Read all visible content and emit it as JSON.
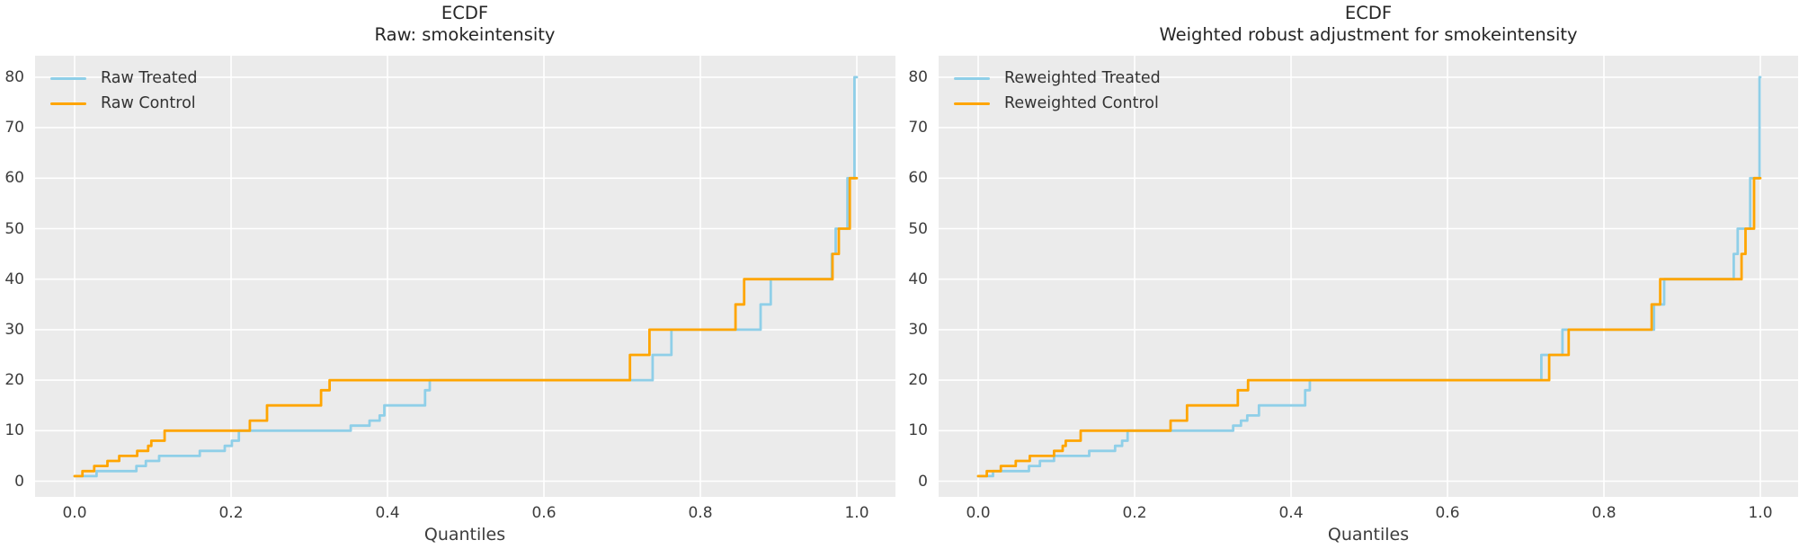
{
  "palette": {
    "treated_line": "#8FCFE8",
    "control_line": "#FFA500",
    "plot_background": "#EBEBEB",
    "gridline": "#FFFFFF",
    "tick_text": "#3D3D3D",
    "title_text": "#262626"
  },
  "chart_data": [
    {
      "type": "line",
      "variant": "quantile-step-ecdf",
      "title_line1": "ECDF",
      "title_line2": "Raw: smokeintensity",
      "xlabel": "Quantiles",
      "x_tick_labels": [
        "0.0",
        "0.2",
        "0.4",
        "0.6",
        "0.8",
        "1.0"
      ],
      "x_tick_values": [
        0.0,
        0.2,
        0.4,
        0.6,
        0.8,
        1.0
      ],
      "y_tick_values": [
        0,
        10,
        20,
        30,
        40,
        50,
        60,
        70,
        80
      ],
      "xlim": [
        -0.05,
        1.05
      ],
      "ylim": [
        -3,
        84
      ],
      "grid": true,
      "legend_position": "upper-left",
      "legend": [
        {
          "label": "Raw Treated",
          "color_key": "treated_line"
        },
        {
          "label": "Raw Control",
          "color_key": "control_line"
        }
      ],
      "series": [
        {
          "name": "Raw Treated",
          "color_key": "treated_line",
          "steps": [
            [
              0.0,
              1
            ],
            [
              0.028,
              2
            ],
            [
              0.079,
              3
            ],
            [
              0.091,
              4
            ],
            [
              0.108,
              5
            ],
            [
              0.16,
              6
            ],
            [
              0.192,
              7
            ],
            [
              0.201,
              8
            ],
            [
              0.21,
              10
            ],
            [
              0.353,
              11
            ],
            [
              0.377,
              12
            ],
            [
              0.39,
              13
            ],
            [
              0.396,
              15
            ],
            [
              0.448,
              18
            ],
            [
              0.454,
              20
            ],
            [
              0.739,
              25
            ],
            [
              0.763,
              30
            ],
            [
              0.877,
              35
            ],
            [
              0.89,
              40
            ],
            [
              0.968,
              45
            ],
            [
              0.973,
              50
            ],
            [
              0.988,
              60
            ],
            [
              0.997,
              80
            ]
          ],
          "end_q": 1.0
        },
        {
          "name": "Raw Control",
          "color_key": "control_line",
          "steps": [
            [
              0.0,
              1
            ],
            [
              0.01,
              2
            ],
            [
              0.025,
              3
            ],
            [
              0.042,
              4
            ],
            [
              0.057,
              5
            ],
            [
              0.08,
              6
            ],
            [
              0.094,
              7
            ],
            [
              0.098,
              8
            ],
            [
              0.115,
              10
            ],
            [
              0.224,
              12
            ],
            [
              0.246,
              15
            ],
            [
              0.315,
              18
            ],
            [
              0.326,
              20
            ],
            [
              0.71,
              25
            ],
            [
              0.735,
              30
            ],
            [
              0.845,
              35
            ],
            [
              0.856,
              40
            ],
            [
              0.969,
              45
            ],
            [
              0.977,
              50
            ],
            [
              0.991,
              60
            ]
          ],
          "end_q": 1.0
        }
      ]
    },
    {
      "type": "line",
      "variant": "quantile-step-ecdf",
      "title_line1": "ECDF",
      "title_line2": "Weighted robust adjustment for smokeintensity",
      "xlabel": "Quantiles",
      "x_tick_labels": [
        "0.0",
        "0.2",
        "0.4",
        "0.6",
        "0.8",
        "1.0"
      ],
      "x_tick_values": [
        0.0,
        0.2,
        0.4,
        0.6,
        0.8,
        1.0
      ],
      "y_tick_values": [
        0,
        10,
        20,
        30,
        40,
        50,
        60,
        70,
        80
      ],
      "xlim": [
        -0.05,
        1.05
      ],
      "ylim": [
        -3,
        84
      ],
      "grid": true,
      "legend_position": "upper-left",
      "legend": [
        {
          "label": "Reweighted Treated",
          "color_key": "treated_line"
        },
        {
          "label": "Reweighted Control",
          "color_key": "control_line"
        }
      ],
      "series": [
        {
          "name": "Reweighted Treated",
          "color_key": "treated_line",
          "steps": [
            [
              0.0,
              1
            ],
            [
              0.019,
              2
            ],
            [
              0.065,
              3
            ],
            [
              0.079,
              4
            ],
            [
              0.097,
              5
            ],
            [
              0.142,
              6
            ],
            [
              0.175,
              7
            ],
            [
              0.184,
              8
            ],
            [
              0.191,
              10
            ],
            [
              0.326,
              11
            ],
            [
              0.336,
              12
            ],
            [
              0.344,
              13
            ],
            [
              0.359,
              15
            ],
            [
              0.418,
              18
            ],
            [
              0.424,
              20
            ],
            [
              0.72,
              25
            ],
            [
              0.747,
              30
            ],
            [
              0.864,
              35
            ],
            [
              0.877,
              40
            ],
            [
              0.966,
              45
            ],
            [
              0.971,
              50
            ],
            [
              0.987,
              60
            ],
            [
              0.999,
              80
            ]
          ],
          "end_q": 1.0
        },
        {
          "name": "Reweighted Control",
          "color_key": "control_line",
          "steps": [
            [
              0.0,
              1
            ],
            [
              0.011,
              2
            ],
            [
              0.029,
              3
            ],
            [
              0.048,
              4
            ],
            [
              0.066,
              5
            ],
            [
              0.097,
              6
            ],
            [
              0.108,
              7
            ],
            [
              0.112,
              8
            ],
            [
              0.131,
              10
            ],
            [
              0.246,
              12
            ],
            [
              0.267,
              15
            ],
            [
              0.332,
              18
            ],
            [
              0.345,
              20
            ],
            [
              0.73,
              25
            ],
            [
              0.755,
              30
            ],
            [
              0.861,
              35
            ],
            [
              0.872,
              40
            ],
            [
              0.976,
              45
            ],
            [
              0.981,
              50
            ],
            [
              0.992,
              60
            ]
          ],
          "end_q": 1.0
        }
      ]
    }
  ]
}
